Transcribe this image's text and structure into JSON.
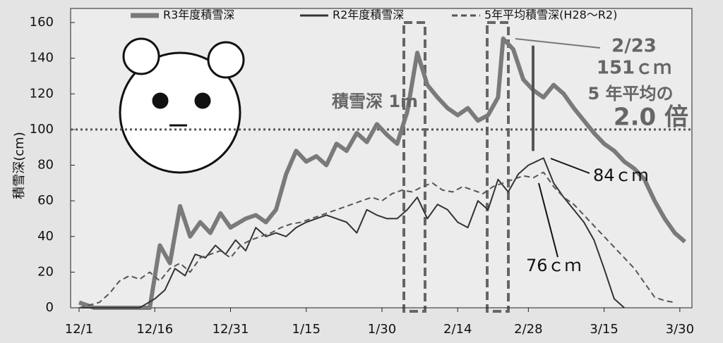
{
  "chart_data": {
    "type": "line",
    "y_label": "積雪深(cm)",
    "ylim": [
      0,
      160
    ],
    "yticks": [
      0,
      20,
      40,
      60,
      80,
      100,
      120,
      140,
      160
    ],
    "xlim": [
      "12/1",
      "3/31"
    ],
    "xticks": [
      "12/1",
      "12/16",
      "12/31",
      "1/15",
      "1/30",
      "2/14",
      "2/28",
      "3/15",
      "3/30"
    ],
    "reference_line": 100,
    "annotations": [
      "積雪深 1m",
      "2/23",
      "151ｃｍ",
      "5 年平均の",
      "2.0 倍",
      "84ｃｍ",
      "76ｃｍ"
    ],
    "series": [
      {
        "name": "R3年度積雪深",
        "color": "#7a7a7a",
        "x": [
          "12/1",
          "12/4",
          "12/7",
          "12/10",
          "12/13",
          "12/15",
          "12/17",
          "12/19",
          "12/21",
          "12/23",
          "12/25",
          "12/27",
          "12/29",
          "12/31",
          "1/3",
          "1/5",
          "1/7",
          "1/9",
          "1/11",
          "1/13",
          "1/15",
          "1/17",
          "1/19",
          "1/21",
          "1/23",
          "1/25",
          "1/27",
          "1/29",
          "1/31",
          "2/2",
          "2/4",
          "2/6",
          "2/8",
          "2/10",
          "2/12",
          "2/14",
          "2/16",
          "2/18",
          "2/20",
          "2/22",
          "2/23",
          "2/25",
          "2/27",
          "3/1",
          "3/3",
          "3/5",
          "3/7",
          "3/9",
          "3/11",
          "3/13",
          "3/15",
          "3/17",
          "3/19",
          "3/21",
          "3/23",
          "3/25",
          "3/27",
          "3/29",
          "3/31"
        ],
        "values": [
          3,
          0,
          0,
          0,
          0,
          0,
          35,
          25,
          57,
          40,
          48,
          42,
          53,
          45,
          50,
          52,
          48,
          55,
          75,
          88,
          82,
          85,
          80,
          92,
          88,
          98,
          93,
          103,
          97,
          92,
          110,
          143,
          125,
          118,
          112,
          108,
          112,
          105,
          108,
          118,
          151,
          145,
          128,
          122,
          118,
          125,
          120,
          112,
          105,
          98,
          92,
          88,
          82,
          78,
          72,
          60,
          50,
          42,
          37
        ]
      },
      {
        "name": "R2年度積雪深",
        "color": "#333333",
        "x": [
          "12/1",
          "12/13",
          "12/16",
          "12/18",
          "12/20",
          "12/22",
          "12/24",
          "12/26",
          "12/28",
          "12/30",
          "1/1",
          "1/3",
          "1/5",
          "1/7",
          "1/9",
          "1/11",
          "1/13",
          "1/15",
          "1/17",
          "1/19",
          "1/21",
          "1/23",
          "1/25",
          "1/27",
          "1/29",
          "1/31",
          "2/2",
          "2/4",
          "2/6",
          "2/8",
          "2/10",
          "2/12",
          "2/14",
          "2/16",
          "2/18",
          "2/20",
          "2/22",
          "2/24",
          "2/26",
          "2/28",
          "3/3",
          "3/5",
          "3/7",
          "3/9",
          "3/11",
          "3/13",
          "3/15",
          "3/17",
          "3/19"
        ],
        "values": [
          0,
          0,
          5,
          10,
          22,
          18,
          30,
          28,
          35,
          30,
          38,
          32,
          45,
          40,
          42,
          40,
          45,
          48,
          50,
          52,
          50,
          48,
          42,
          55,
          52,
          50,
          50,
          55,
          62,
          50,
          58,
          55,
          48,
          45,
          60,
          55,
          72,
          65,
          75,
          80,
          84,
          70,
          62,
          55,
          48,
          38,
          22,
          5,
          0
        ]
      },
      {
        "name": "5年平均積雪深(H28～R2)",
        "color": "#555555",
        "dashed": true,
        "x": [
          "12/1",
          "12/5",
          "12/7",
          "12/9",
          "12/11",
          "12/13",
          "12/15",
          "12/17",
          "12/19",
          "12/21",
          "12/23",
          "12/25",
          "12/27",
          "12/29",
          "12/31",
          "1/2",
          "1/4",
          "1/6",
          "1/8",
          "1/10",
          "1/12",
          "1/14",
          "1/16",
          "1/18",
          "1/20",
          "1/22",
          "1/24",
          "1/26",
          "1/28",
          "1/30",
          "2/1",
          "2/3",
          "2/5",
          "2/7",
          "2/9",
          "2/11",
          "2/13",
          "2/15",
          "2/17",
          "2/19",
          "2/21",
          "2/23",
          "2/25",
          "2/27",
          "3/1",
          "3/3",
          "3/5",
          "3/7",
          "3/9",
          "3/11",
          "3/13",
          "3/15",
          "3/17",
          "3/19",
          "3/21",
          "3/23",
          "3/25",
          "3/27",
          "3/29"
        ],
        "values": [
          0,
          3,
          8,
          15,
          18,
          16,
          20,
          15,
          22,
          25,
          20,
          28,
          30,
          32,
          28,
          35,
          38,
          40,
          42,
          45,
          47,
          48,
          50,
          52,
          54,
          56,
          58,
          60,
          62,
          60,
          64,
          66,
          65,
          68,
          70,
          66,
          65,
          68,
          66,
          64,
          68,
          70,
          72,
          74,
          73,
          76,
          68,
          62,
          58,
          52,
          46,
          40,
          34,
          28,
          22,
          14,
          6,
          4,
          3
        ]
      }
    ]
  }
}
